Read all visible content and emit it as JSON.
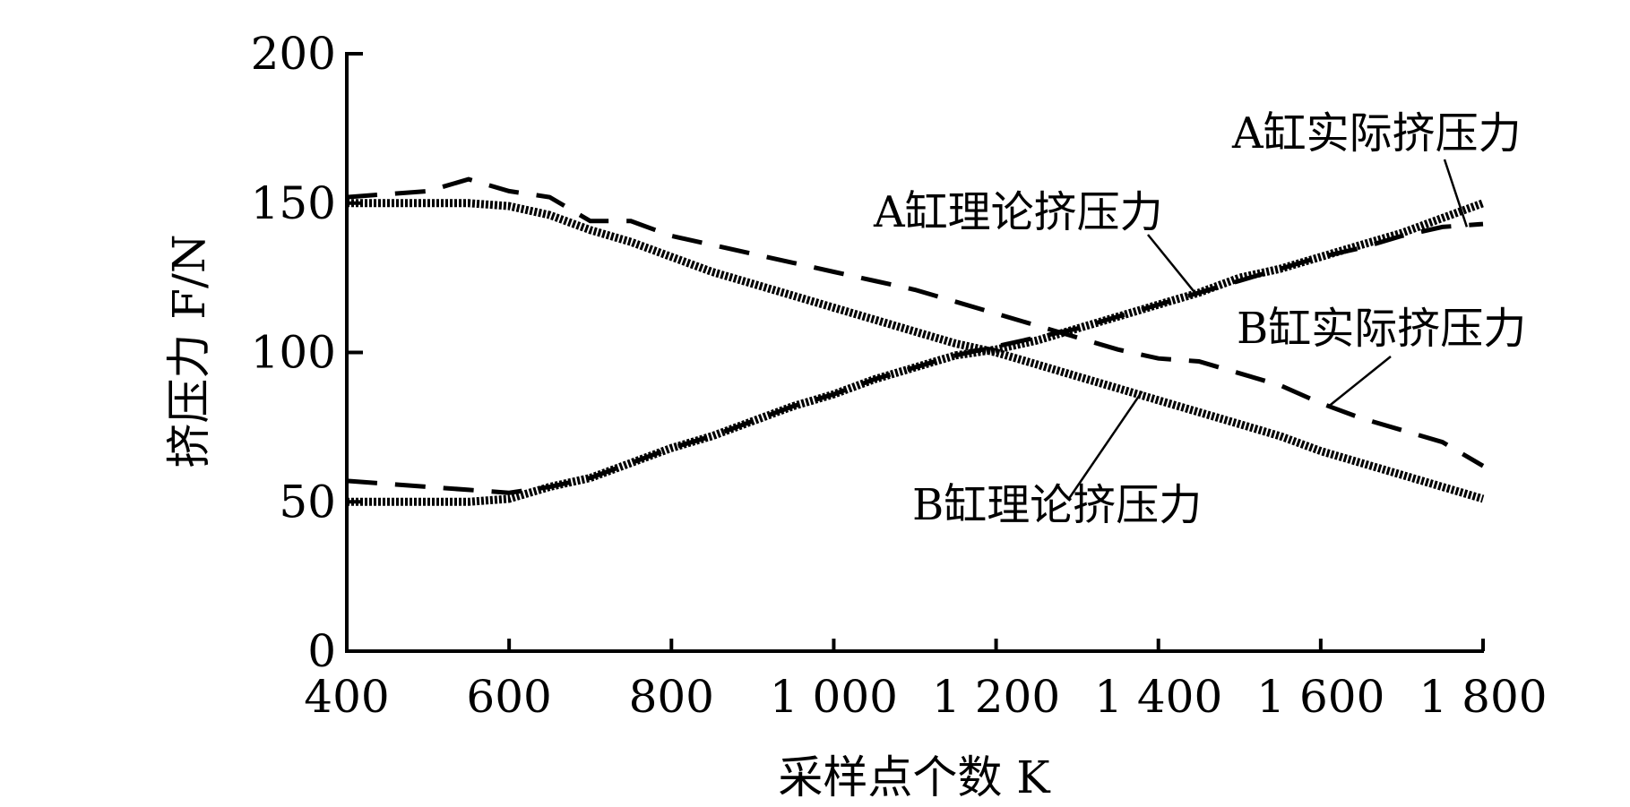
{
  "chart_data": {
    "type": "line",
    "xlabel": "采样点个数 K",
    "ylabel": "挤压力 F/N",
    "xlim": [
      400,
      1800
    ],
    "ylim": [
      0,
      200
    ],
    "x_ticks": [
      400,
      600,
      800,
      1000,
      1200,
      1400,
      1600,
      1800
    ],
    "x_tick_labels": [
      "400",
      "600",
      "800",
      "1 000",
      "1 200",
      "1 400",
      "1 600",
      "1 800"
    ],
    "y_ticks": [
      0,
      50,
      100,
      150,
      200
    ],
    "y_tick_labels": [
      "0",
      "50",
      "100",
      "150",
      "200"
    ],
    "grid": false,
    "legend": "none",
    "series": [
      {
        "name": "A缸理论挤压力",
        "style": "dotted-thick",
        "x": [
          400,
          450,
          500,
          550,
          600,
          650,
          700,
          750,
          800,
          850,
          900,
          950,
          1000,
          1050,
          1100,
          1150,
          1200,
          1250,
          1300,
          1350,
          1400,
          1450,
          1500,
          1550,
          1600,
          1650,
          1700,
          1750,
          1800
        ],
        "y": [
          50,
          50,
          50,
          50,
          51,
          55,
          58,
          63,
          68,
          72,
          77,
          82,
          86,
          91,
          95,
          99,
          101,
          104,
          108,
          112,
          116,
          120,
          125,
          128,
          132,
          136,
          140,
          145,
          150
        ]
      },
      {
        "name": "B缸理论挤压力",
        "style": "dotted-thick",
        "x": [
          400,
          450,
          500,
          550,
          600,
          650,
          700,
          750,
          800,
          850,
          900,
          950,
          1000,
          1050,
          1100,
          1150,
          1200,
          1250,
          1300,
          1350,
          1400,
          1450,
          1500,
          1550,
          1600,
          1650,
          1700,
          1750,
          1800
        ],
        "y": [
          150,
          150,
          150,
          150,
          149,
          146,
          141,
          137,
          132,
          127,
          123,
          119,
          115,
          111,
          107,
          103,
          100,
          96,
          92,
          88,
          84,
          80,
          76,
          72,
          67,
          63,
          59,
          55,
          51
        ]
      },
      {
        "name": "A缸实际挤压力",
        "style": "dashed",
        "x": [
          400,
          450,
          500,
          550,
          600,
          650,
          700,
          750,
          800,
          850,
          900,
          950,
          1000,
          1050,
          1100,
          1150,
          1200,
          1250,
          1300,
          1350,
          1400,
          1450,
          1500,
          1550,
          1600,
          1650,
          1700,
          1750,
          1800
        ],
        "y": [
          57,
          56,
          55,
          54,
          53,
          55,
          58,
          63,
          68,
          72,
          77,
          82,
          86,
          91,
          95,
          99,
          102,
          105,
          108,
          112,
          116,
          120,
          124,
          128,
          132,
          135,
          139,
          142,
          143
        ]
      },
      {
        "name": "B缸实际挤压力",
        "style": "dashed",
        "x": [
          400,
          450,
          500,
          550,
          600,
          650,
          700,
          750,
          800,
          850,
          900,
          950,
          1000,
          1050,
          1100,
          1150,
          1200,
          1250,
          1300,
          1350,
          1400,
          1450,
          1500,
          1550,
          1600,
          1650,
          1700,
          1750,
          1800
        ],
        "y": [
          152,
          153,
          154,
          158,
          154,
          152,
          144,
          144,
          139,
          136,
          133,
          130,
          127,
          124,
          121,
          117,
          113,
          109,
          105,
          101,
          98,
          97,
          93,
          89,
          83,
          78,
          74,
          70,
          62
        ]
      }
    ],
    "annotations": [
      {
        "text": "A缸实际挤压力",
        "target_x": 1780,
        "target_y": 142
      },
      {
        "text": "A缸理论挤压力",
        "target_x": 1445,
        "target_y": 120
      },
      {
        "text": "B缸实际挤压力",
        "target_x": 1610,
        "target_y": 82
      },
      {
        "text": "B缸理论挤压力",
        "target_x": 1380,
        "target_y": 87
      }
    ]
  }
}
